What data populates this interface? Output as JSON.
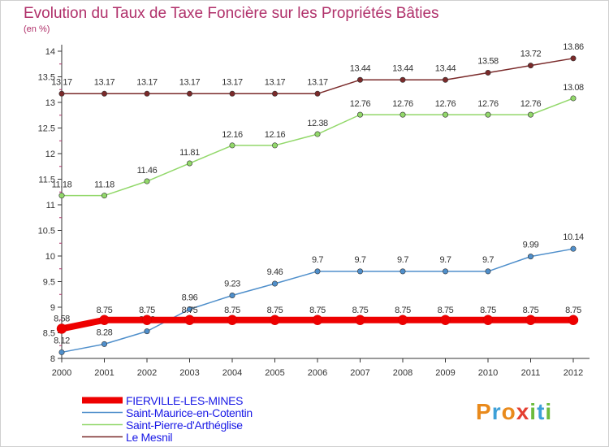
{
  "title": "Evolution du Taux de Taxe Foncière sur les Propriétés Bâties",
  "unit_label": "(en %)",
  "logo_text": "Proxiti",
  "colors": {
    "title": "#b0306a",
    "axis": "#333333",
    "legend_text": "#1a1ae6"
  },
  "chart_data": {
    "type": "line",
    "title": "Evolution du Taux de Taxe Foncière sur les Propriétés Bâties",
    "ylabel": "(en %)",
    "xlabel": "",
    "x": [
      "2000",
      "2001",
      "2002",
      "2003",
      "2004",
      "2005",
      "2006",
      "2007",
      "2008",
      "2009",
      "2010",
      "2011",
      "2012"
    ],
    "ylim": [
      8,
      14
    ],
    "yticks": [
      "8",
      "8.5",
      "9",
      "9.5",
      "10",
      "10.5",
      "11",
      "11.5",
      "12",
      "12.5",
      "13",
      "13.5",
      "14"
    ],
    "grid": false,
    "legend_position": "bottom-left",
    "series": [
      {
        "name": "FIERVILLE-LES-MINES",
        "color": "#ee0000",
        "values": [
          8.58,
          8.75,
          8.75,
          8.75,
          8.75,
          8.75,
          8.75,
          8.75,
          8.75,
          8.75,
          8.75,
          8.75,
          8.75
        ],
        "labels": [
          "8.58",
          "8.75",
          "8.75",
          "8.75",
          "8.75",
          "8.75",
          "8.75",
          "8.75",
          "8.75",
          "8.75",
          "8.75",
          "8.75",
          "8.75"
        ]
      },
      {
        "name": "Saint-Maurice-en-Cotentin",
        "color": "#4f8fcb",
        "values": [
          8.12,
          8.28,
          8.53,
          8.96,
          9.23,
          9.46,
          9.7,
          9.7,
          9.7,
          9.7,
          9.7,
          9.99,
          10.14
        ],
        "labels": [
          "8.12",
          "8.28",
          "8.53",
          "8.96",
          "9.23",
          "9.46",
          "9.7",
          "9.7",
          "9.7",
          "9.7",
          "9.7",
          "9.99",
          "10.14"
        ]
      },
      {
        "name": "Saint-Pierre-d'Arthéglise",
        "color": "#92d86a",
        "values": [
          11.18,
          11.18,
          11.46,
          11.81,
          12.16,
          12.16,
          12.38,
          12.76,
          12.76,
          12.76,
          12.76,
          12.76,
          13.08
        ],
        "labels": [
          "11.18",
          "11.18",
          "11.46",
          "11.81",
          "12.16",
          "12.16",
          "12.38",
          "12.76",
          "12.76",
          "12.76",
          "12.76",
          "12.76",
          "13.08"
        ]
      },
      {
        "name": "Le Mesnil",
        "color": "#7a2a2a",
        "values": [
          13.17,
          13.17,
          13.17,
          13.17,
          13.17,
          13.17,
          13.17,
          13.44,
          13.44,
          13.44,
          13.58,
          13.72,
          13.86
        ],
        "labels": [
          "13.17",
          "13.17",
          "13.17",
          "13.17",
          "13.17",
          "13.17",
          "13.17",
          "13.44",
          "13.44",
          "13.44",
          "13.58",
          "13.72",
          "13.86"
        ]
      }
    ]
  }
}
